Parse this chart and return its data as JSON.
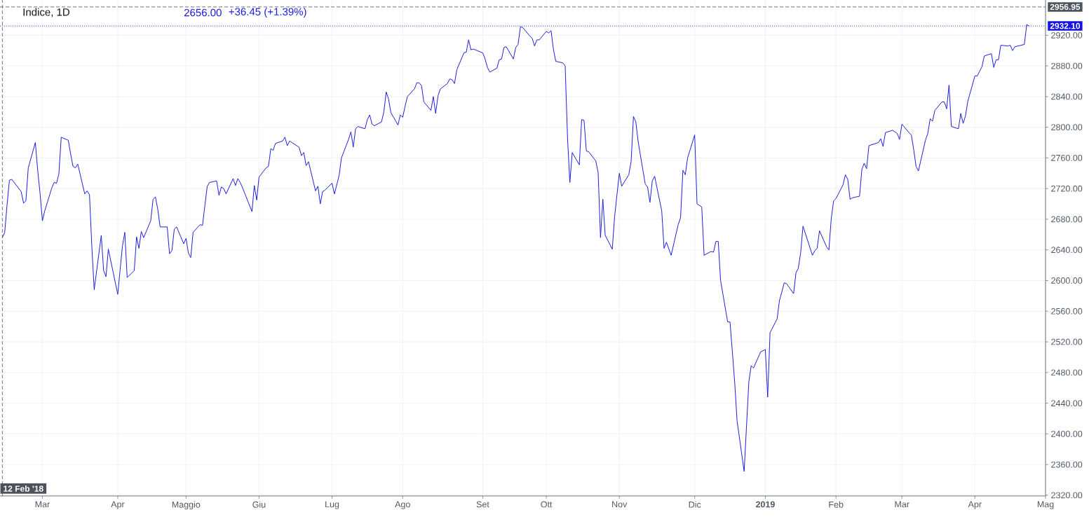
{
  "chart_data": {
    "type": "line",
    "title": "Indice, 1D",
    "annotations": [
      "2656.00",
      "+36.45 (+1.39%)"
    ],
    "x": [
      "2018-02-12",
      "2018-02-13",
      "2018-02-14",
      "2018-02-15",
      "2018-02-16",
      "2018-02-20",
      "2018-02-21",
      "2018-02-22",
      "2018-02-23",
      "2018-02-26",
      "2018-02-27",
      "2018-02-28",
      "2018-03-01",
      "2018-03-02",
      "2018-03-05",
      "2018-03-06",
      "2018-03-07",
      "2018-03-08",
      "2018-03-09",
      "2018-03-12",
      "2018-03-13",
      "2018-03-14",
      "2018-03-15",
      "2018-03-16",
      "2018-03-19",
      "2018-03-20",
      "2018-03-21",
      "2018-03-22",
      "2018-03-23",
      "2018-03-26",
      "2018-03-27",
      "2018-03-28",
      "2018-03-29",
      "2018-04-02",
      "2018-04-03",
      "2018-04-04",
      "2018-04-05",
      "2018-04-06",
      "2018-04-09",
      "2018-04-10",
      "2018-04-11",
      "2018-04-12",
      "2018-04-13",
      "2018-04-16",
      "2018-04-17",
      "2018-04-18",
      "2018-04-19",
      "2018-04-20",
      "2018-04-23",
      "2018-04-24",
      "2018-04-25",
      "2018-04-26",
      "2018-04-27",
      "2018-04-30",
      "2018-05-01",
      "2018-05-02",
      "2018-05-03",
      "2018-05-04",
      "2018-05-07",
      "2018-05-08",
      "2018-05-09",
      "2018-05-10",
      "2018-05-11",
      "2018-05-14",
      "2018-05-15",
      "2018-05-16",
      "2018-05-17",
      "2018-05-18",
      "2018-05-21",
      "2018-05-22",
      "2018-05-23",
      "2018-05-24",
      "2018-05-25",
      "2018-05-29",
      "2018-05-30",
      "2018-05-31",
      "2018-06-01",
      "2018-06-04",
      "2018-06-05",
      "2018-06-06",
      "2018-06-07",
      "2018-06-08",
      "2018-06-11",
      "2018-06-12",
      "2018-06-13",
      "2018-06-14",
      "2018-06-15",
      "2018-06-18",
      "2018-06-19",
      "2018-06-20",
      "2018-06-21",
      "2018-06-22",
      "2018-06-25",
      "2018-06-26",
      "2018-06-27",
      "2018-06-28",
      "2018-06-29",
      "2018-07-02",
      "2018-07-03",
      "2018-07-05",
      "2018-07-06",
      "2018-07-09",
      "2018-07-10",
      "2018-07-11",
      "2018-07-12",
      "2018-07-13",
      "2018-07-16",
      "2018-07-17",
      "2018-07-18",
      "2018-07-19",
      "2018-07-20",
      "2018-07-23",
      "2018-07-24",
      "2018-07-25",
      "2018-07-26",
      "2018-07-27",
      "2018-07-30",
      "2018-07-31",
      "2018-08-01",
      "2018-08-02",
      "2018-08-03",
      "2018-08-06",
      "2018-08-07",
      "2018-08-08",
      "2018-08-09",
      "2018-08-10",
      "2018-08-13",
      "2018-08-14",
      "2018-08-15",
      "2018-08-16",
      "2018-08-17",
      "2018-08-20",
      "2018-08-21",
      "2018-08-22",
      "2018-08-23",
      "2018-08-24",
      "2018-08-27",
      "2018-08-28",
      "2018-08-29",
      "2018-08-30",
      "2018-08-31",
      "2018-09-04",
      "2018-09-05",
      "2018-09-06",
      "2018-09-07",
      "2018-09-10",
      "2018-09-11",
      "2018-09-12",
      "2018-09-13",
      "2018-09-14",
      "2018-09-17",
      "2018-09-18",
      "2018-09-19",
      "2018-09-20",
      "2018-09-21",
      "2018-09-24",
      "2018-09-25",
      "2018-09-26",
      "2018-09-27",
      "2018-09-28",
      "2018-10-01",
      "2018-10-02",
      "2018-10-03",
      "2018-10-04",
      "2018-10-05",
      "2018-10-08",
      "2018-10-09",
      "2018-10-10",
      "2018-10-11",
      "2018-10-12",
      "2018-10-15",
      "2018-10-16",
      "2018-10-17",
      "2018-10-18",
      "2018-10-19",
      "2018-10-22",
      "2018-10-23",
      "2018-10-24",
      "2018-10-25",
      "2018-10-26",
      "2018-10-29",
      "2018-10-30",
      "2018-10-31",
      "2018-11-01",
      "2018-11-02",
      "2018-11-05",
      "2018-11-06",
      "2018-11-07",
      "2018-11-08",
      "2018-11-09",
      "2018-11-12",
      "2018-11-13",
      "2018-11-14",
      "2018-11-15",
      "2018-11-16",
      "2018-11-19",
      "2018-11-20",
      "2018-11-21",
      "2018-11-23",
      "2018-11-26",
      "2018-11-27",
      "2018-11-28",
      "2018-11-29",
      "2018-11-30",
      "2018-12-03",
      "2018-12-04",
      "2018-12-06",
      "2018-12-07",
      "2018-12-10",
      "2018-12-11",
      "2018-12-12",
      "2018-12-13",
      "2018-12-14",
      "2018-12-17",
      "2018-12-18",
      "2018-12-19",
      "2018-12-20",
      "2018-12-21",
      "2018-12-24",
      "2018-12-26",
      "2018-12-27",
      "2018-12-28",
      "2018-12-31",
      "2019-01-02",
      "2019-01-03",
      "2019-01-04",
      "2019-01-07",
      "2019-01-08",
      "2019-01-09",
      "2019-01-10",
      "2019-01-11",
      "2019-01-14",
      "2019-01-15",
      "2019-01-16",
      "2019-01-17",
      "2019-01-18",
      "2019-01-22",
      "2019-01-23",
      "2019-01-24",
      "2019-01-25",
      "2019-01-28",
      "2019-01-29",
      "2019-01-30",
      "2019-01-31",
      "2019-02-01",
      "2019-02-04",
      "2019-02-05",
      "2019-02-06",
      "2019-02-07",
      "2019-02-08",
      "2019-02-11",
      "2019-02-12",
      "2019-02-13",
      "2019-02-14",
      "2019-02-15",
      "2019-02-19",
      "2019-02-20",
      "2019-02-21",
      "2019-02-22",
      "2019-02-25",
      "2019-02-26",
      "2019-02-27",
      "2019-02-28",
      "2019-03-01",
      "2019-03-04",
      "2019-03-05",
      "2019-03-06",
      "2019-03-07",
      "2019-03-08",
      "2019-03-11",
      "2019-03-12",
      "2019-03-13",
      "2019-03-14",
      "2019-03-15",
      "2019-03-18",
      "2019-03-19",
      "2019-03-20",
      "2019-03-21",
      "2019-03-22",
      "2019-03-25",
      "2019-03-26",
      "2019-03-27",
      "2019-03-28",
      "2019-03-29",
      "2019-04-01",
      "2019-04-02",
      "2019-04-03",
      "2019-04-04",
      "2019-04-05",
      "2019-04-08",
      "2019-04-09",
      "2019-04-10",
      "2019-04-11",
      "2019-04-12",
      "2019-04-15",
      "2019-04-16",
      "2019-04-17",
      "2019-04-18",
      "2019-04-22",
      "2019-04-23",
      "2019-04-24"
    ],
    "values": [
      2656,
      2663,
      2699,
      2731,
      2732,
      2716,
      2701,
      2704,
      2747,
      2780,
      2744,
      2714,
      2678,
      2691,
      2721,
      2728,
      2727,
      2739,
      2787,
      2783,
      2765,
      2749,
      2747,
      2752,
      2713,
      2717,
      2712,
      2644,
      2588,
      2659,
      2613,
      2605,
      2641,
      2582,
      2614,
      2645,
      2663,
      2604,
      2613,
      2657,
      2642,
      2664,
      2656,
      2678,
      2706,
      2709,
      2693,
      2670,
      2670,
      2635,
      2639,
      2667,
      2670,
      2648,
      2655,
      2636,
      2630,
      2663,
      2673,
      2672,
      2698,
      2723,
      2728,
      2730,
      2711,
      2722,
      2720,
      2713,
      2733,
      2724,
      2733,
      2728,
      2721,
      2690,
      2724,
      2705,
      2735,
      2747,
      2749,
      2772,
      2770,
      2779,
      2782,
      2787,
      2776,
      2782,
      2780,
      2774,
      2763,
      2767,
      2750,
      2755,
      2717,
      2723,
      2700,
      2716,
      2718,
      2727,
      2713,
      2737,
      2760,
      2784,
      2794,
      2774,
      2798,
      2801,
      2798,
      2810,
      2816,
      2804,
      2802,
      2807,
      2820,
      2846,
      2837,
      2819,
      2803,
      2816,
      2813,
      2827,
      2840,
      2850,
      2858,
      2858,
      2854,
      2833,
      2822,
      2840,
      2818,
      2841,
      2850,
      2857,
      2863,
      2862,
      2857,
      2875,
      2897,
      2898,
      2914,
      2901,
      2902,
      2897,
      2889,
      2878,
      2872,
      2877,
      2888,
      2889,
      2904,
      2905,
      2889,
      2904,
      2908,
      2931,
      2930,
      2919,
      2916,
      2906,
      2914,
      2914,
      2925,
      2923,
      2926,
      2902,
      2886,
      2884,
      2880,
      2786,
      2728,
      2767,
      2751,
      2810,
      2809,
      2769,
      2768,
      2756,
      2741,
      2656,
      2706,
      2659,
      2641,
      2683,
      2712,
      2740,
      2723,
      2738,
      2755,
      2814,
      2807,
      2781,
      2726,
      2722,
      2702,
      2730,
      2736,
      2691,
      2642,
      2650,
      2633,
      2673,
      2682,
      2744,
      2738,
      2760,
      2790,
      2700,
      2696,
      2633,
      2638,
      2637,
      2651,
      2651,
      2600,
      2546,
      2546,
      2507,
      2467,
      2417,
      2351,
      2468,
      2489,
      2486,
      2507,
      2510,
      2448,
      2532,
      2550,
      2574,
      2585,
      2597,
      2596,
      2583,
      2610,
      2616,
      2636,
      2671,
      2633,
      2639,
      2642,
      2665,
      2644,
      2640,
      2681,
      2704,
      2707,
      2725,
      2738,
      2732,
      2706,
      2708,
      2710,
      2745,
      2753,
      2746,
      2776,
      2780,
      2785,
      2775,
      2793,
      2796,
      2794,
      2792,
      2784,
      2804,
      2793,
      2790,
      2771,
      2749,
      2743,
      2783,
      2792,
      2811,
      2808,
      2822,
      2833,
      2833,
      2824,
      2855,
      2801,
      2798,
      2818,
      2805,
      2815,
      2834,
      2867,
      2867,
      2873,
      2879,
      2893,
      2896,
      2878,
      2888,
      2888,
      2907,
      2906,
      2907,
      2900,
      2905,
      2908,
      2934,
      2932
    ],
    "color": "#1e1ee0",
    "xlim": [
      "2018-02-11",
      "2019-05-01"
    ],
    "xticks": [
      {
        "value": "2018-03-01",
        "label": "Mar"
      },
      {
        "value": "2018-04-02",
        "label": "Apr"
      },
      {
        "value": "2018-05-01",
        "label": "Maggio"
      },
      {
        "value": "2018-06-01",
        "label": "Giu"
      },
      {
        "value": "2018-07-02",
        "label": "Lug"
      },
      {
        "value": "2018-08-01",
        "label": "Ago"
      },
      {
        "value": "2018-09-04",
        "label": "Set"
      },
      {
        "value": "2018-10-01",
        "label": "Ott"
      },
      {
        "value": "2018-11-01",
        "label": "Nov"
      },
      {
        "value": "2018-12-03",
        "label": "Dic"
      },
      {
        "value": "2019-01-02",
        "label": "2019"
      },
      {
        "value": "2019-02-01",
        "label": "Feb"
      },
      {
        "value": "2019-03-01",
        "label": "Mar"
      },
      {
        "value": "2019-04-01",
        "label": "Apr"
      },
      {
        "value": "2019-05-01",
        "label": "Mag"
      }
    ],
    "ylim": [
      2319,
      2966
    ],
    "yticks": [
      {
        "value": 2320,
        "label": "2320.00"
      },
      {
        "value": 2360,
        "label": "2360.00"
      },
      {
        "value": 2400,
        "label": "2400.00"
      },
      {
        "value": 2440,
        "label": "2440.00"
      },
      {
        "value": 2480,
        "label": "2480.00"
      },
      {
        "value": 2520,
        "label": "2520.00"
      },
      {
        "value": 2560,
        "label": "2560.00"
      },
      {
        "value": 2600,
        "label": "2600.00"
      },
      {
        "value": 2640,
        "label": "2640.00"
      },
      {
        "value": 2680,
        "label": "2680.00"
      },
      {
        "value": 2720,
        "label": "2720.00"
      },
      {
        "value": 2760,
        "label": "2760.00"
      },
      {
        "value": 2800,
        "label": "2800.00"
      },
      {
        "value": 2840,
        "label": "2840.00"
      },
      {
        "value": 2880,
        "label": "2880.00"
      },
      {
        "value": 2920,
        "label": "2920.00"
      }
    ],
    "grid": true,
    "ref_lines": [
      {
        "axis": "y",
        "value": 2956.95,
        "label": "2956.95",
        "color": "#4c525e",
        "line_style": "dashed"
      },
      {
        "axis": "y",
        "value": 2932.1,
        "label": "2932.10",
        "color": "#1414e6",
        "line_style": "dotted"
      },
      {
        "axis": "x",
        "value": "2018-02-12",
        "label": "12 Feb '18",
        "color": "#4c525e",
        "line_style": "dashed"
      }
    ]
  }
}
